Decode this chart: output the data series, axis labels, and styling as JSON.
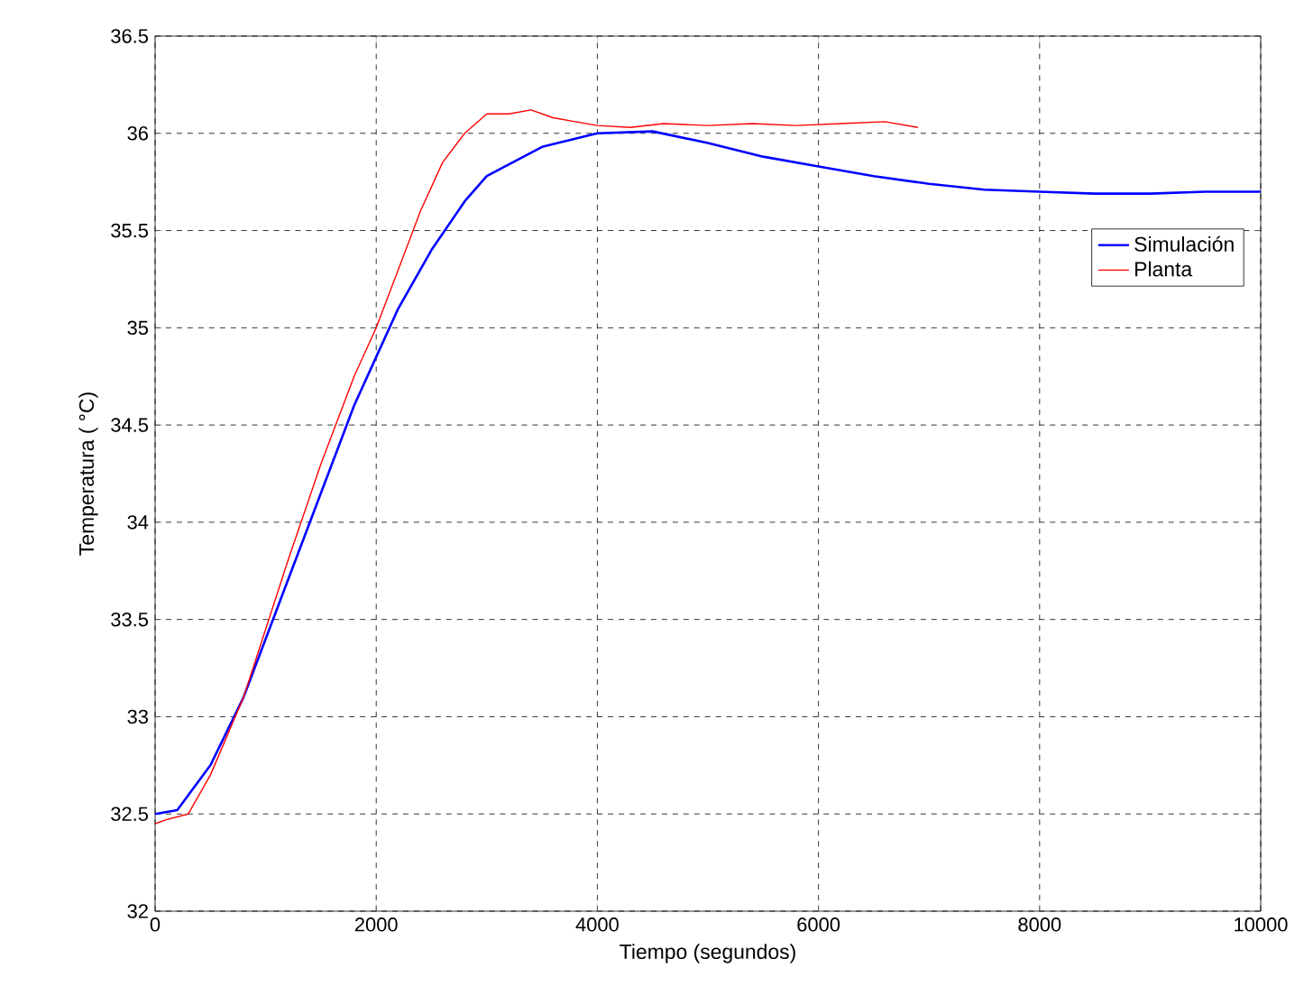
{
  "chart_data": {
    "type": "line",
    "xlabel": "Tiempo (segundos)",
    "ylabel": "Temperatura ( °C)",
    "xlim": [
      0,
      10000
    ],
    "ylim": [
      32,
      36.5
    ],
    "xticks": [
      0,
      2000,
      4000,
      6000,
      8000,
      10000
    ],
    "yticks": [
      32,
      32.5,
      33,
      33.5,
      34,
      34.5,
      35,
      35.5,
      36,
      36.5
    ],
    "grid": true,
    "legend": "right",
    "line_style": "solid",
    "series": [
      {
        "name": "Simulación",
        "color": "#0000ff",
        "x": [
          0,
          200,
          500,
          800,
          1000,
          1200,
          1500,
          1800,
          2000,
          2200,
          2500,
          2800,
          3000,
          3500,
          4000,
          4500,
          5000,
          5500,
          6000,
          6500,
          7000,
          7500,
          8000,
          8500,
          9000,
          9500,
          10000
        ],
        "values": [
          32.5,
          32.52,
          32.75,
          33.1,
          33.4,
          33.7,
          34.15,
          34.6,
          34.85,
          35.1,
          35.4,
          35.65,
          35.78,
          35.93,
          36.0,
          36.01,
          35.95,
          35.88,
          35.83,
          35.78,
          35.74,
          35.71,
          35.7,
          35.69,
          35.69,
          35.7,
          35.7
        ]
      },
      {
        "name": "Planta",
        "color": "#ff0000",
        "x": [
          0,
          100,
          300,
          500,
          800,
          1000,
          1200,
          1500,
          1800,
          2000,
          2200,
          2400,
          2600,
          2800,
          3000,
          3200,
          3400,
          3600,
          3800,
          4000,
          4300,
          4600,
          5000,
          5400,
          5800,
          6200,
          6600,
          6900
        ],
        "values": [
          32.45,
          32.47,
          32.5,
          32.7,
          33.1,
          33.45,
          33.8,
          34.3,
          34.75,
          35.0,
          35.3,
          35.6,
          35.85,
          36.0,
          36.1,
          36.1,
          36.12,
          36.08,
          36.06,
          36.04,
          36.03,
          36.05,
          36.04,
          36.05,
          36.04,
          36.05,
          36.06,
          36.03
        ]
      }
    ]
  }
}
